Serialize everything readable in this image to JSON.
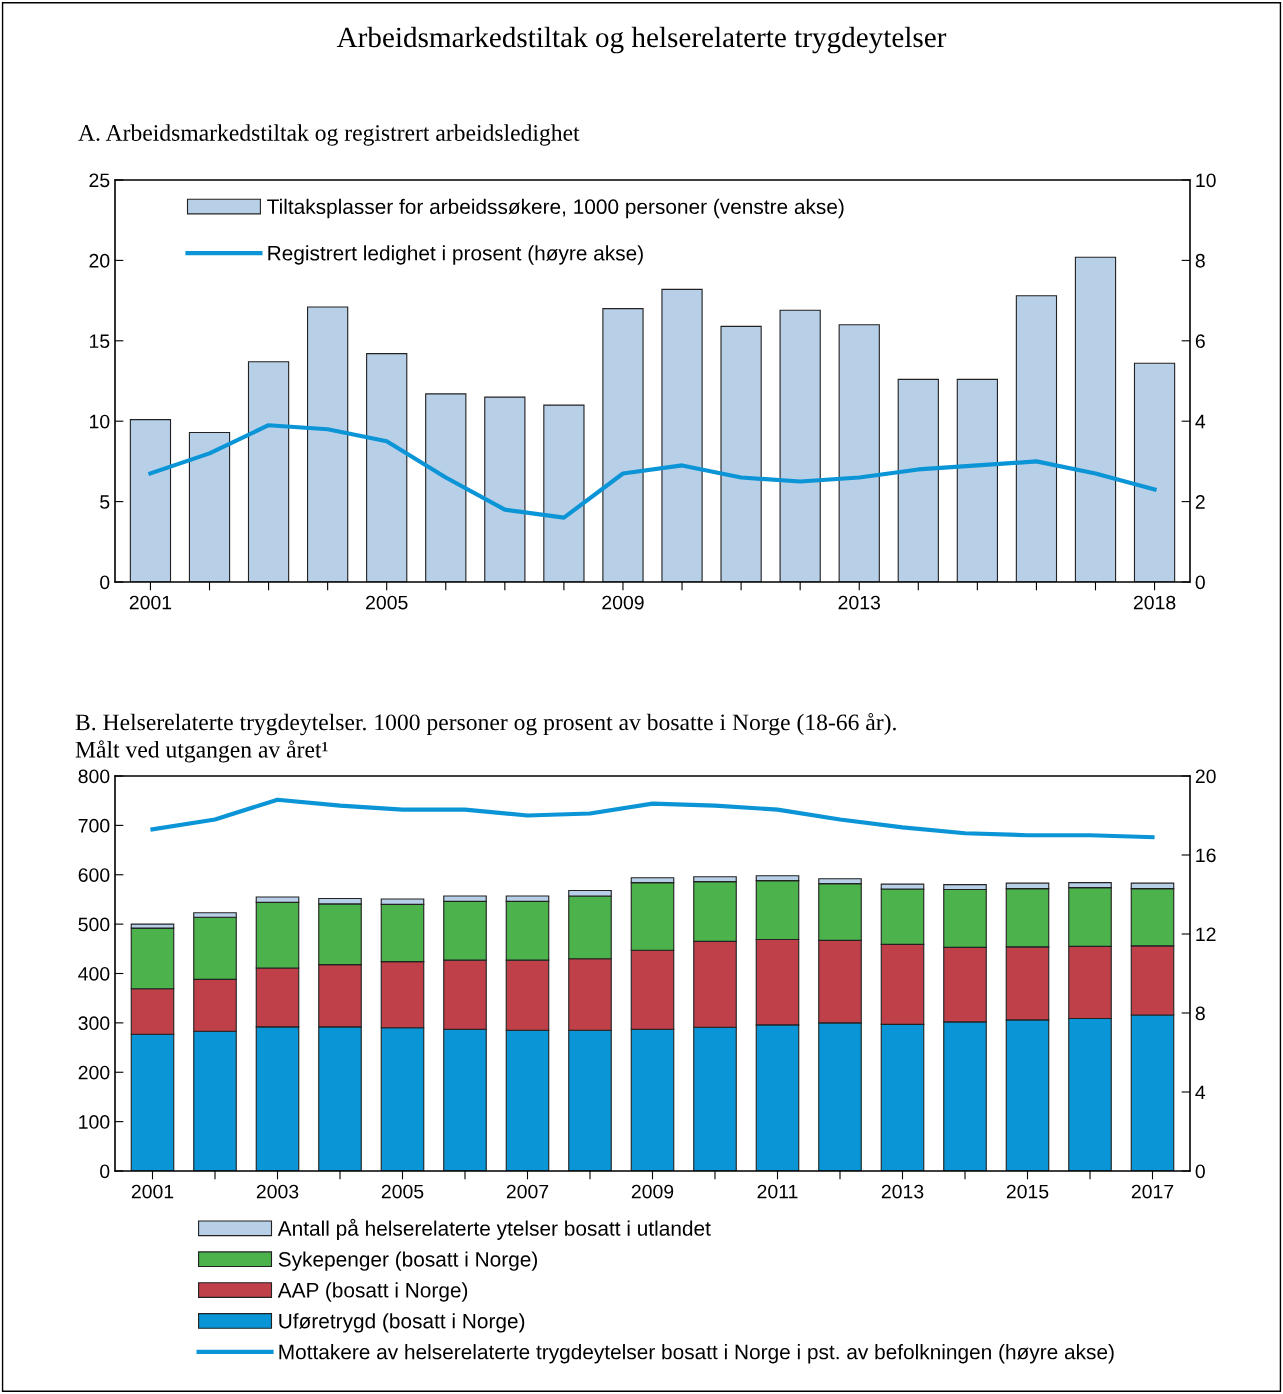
{
  "chart_data": [
    {
      "type": "bar",
      "title": "Arbeidsmarkedstiltak og helserelaterte trygdeytelser",
      "subtitle": "A. Arbeidsmarkedstiltak og registrert arbeidsledighet",
      "categories": [
        "2001",
        null,
        null,
        null,
        "2005",
        null,
        null,
        null,
        "2009",
        null,
        null,
        null,
        "2013",
        null,
        null,
        null,
        null,
        "2018"
      ],
      "series": [
        {
          "name": "Tiltaksplasser for arbeidssøkere, 1000 personer (venstre akse)",
          "color": "#b8cfe8",
          "values": [
            10.1,
            9.3,
            13.7,
            17.1,
            14.2,
            11.7,
            11.5,
            11.0,
            17.0,
            18.2,
            15.9,
            16.9,
            16.0,
            12.6,
            12.6,
            17.8,
            20.2,
            13.6
          ]
        },
        {
          "name": "Registrert ledighet i prosent (høyre akse)",
          "type": "line",
          "axis": "y2",
          "color": "#0b95d6",
          "values": [
            2.7,
            3.2,
            3.9,
            3.8,
            3.5,
            2.6,
            1.8,
            1.6,
            2.7,
            2.9,
            2.6,
            2.5,
            2.6,
            2.8,
            2.9,
            3.0,
            2.7,
            2.3
          ]
        }
      ],
      "ylim": [
        0,
        25
      ],
      "yticks": [
        0,
        5,
        10,
        15,
        20,
        25
      ],
      "y2lim": [
        0,
        10
      ],
      "y2ticks": [
        0,
        2,
        4,
        6,
        8,
        10
      ],
      "legend": "top left",
      "grid": false,
      "marker": "none",
      "line_style": "solid"
    },
    {
      "type": "bar",
      "subtitle": "B. Helserelaterte trygdeytelser. 1000 personer og prosent av bosatte i Norge (18-66 år).\nMålt ved utgangen av året¹",
      "categories": [
        "2001",
        null,
        "2003",
        null,
        "2005",
        null,
        "2007",
        null,
        "2009",
        null,
        "2011",
        null,
        "2013",
        null,
        "2015",
        null,
        "2017"
      ],
      "stacked": true,
      "series": [
        {
          "name": "Uføretrygd (bosatt i Norge)",
          "color": "#0a96d6",
          "values": [
            277,
            283,
            292,
            292,
            290,
            287,
            285,
            285,
            287,
            291,
            296,
            300,
            297,
            302,
            306,
            309,
            316
          ]
        },
        {
          "name": "AAP (bosatt i Norge)",
          "color": "#c0404a",
          "values": [
            92,
            105,
            119,
            126,
            134,
            140,
            142,
            145,
            160,
            174,
            173,
            167,
            162,
            151,
            148,
            146,
            140
          ]
        },
        {
          "name": "Sykepenger (bosatt i Norge)",
          "color": "#4cb24c",
          "values": [
            123,
            126,
            133,
            123,
            116,
            119,
            119,
            127,
            137,
            121,
            119,
            115,
            112,
            117,
            118,
            119,
            116
          ]
        },
        {
          "name": "Antall på helserelaterte ytelser bosatt i utlandet",
          "color": "#b8cfe8",
          "values": [
            8,
            9,
            11,
            11,
            11,
            11,
            11,
            11,
            10,
            10,
            10,
            10,
            10,
            10,
            11,
            10,
            11
          ]
        },
        {
          "name": "Mottakere av helserelaterte trygdeytelser bosatt i Norge i pst. av befolkningen (høyre akse)",
          "type": "line",
          "axis": "y2",
          "color": "#0b95d6",
          "values": [
            17.3,
            17.8,
            18.8,
            18.5,
            18.3,
            18.3,
            18.0,
            18.1,
            18.6,
            18.5,
            18.3,
            17.8,
            17.4,
            17.1,
            17.0,
            17.0,
            16.9
          ]
        }
      ],
      "ylim": [
        0,
        800
      ],
      "yticks": [
        0,
        100,
        200,
        300,
        400,
        500,
        600,
        700,
        800
      ],
      "y2lim": [
        0,
        20
      ],
      "y2ticks": [
        0,
        4,
        8,
        12,
        16,
        20
      ],
      "legend": "bottom",
      "grid": false,
      "marker": "none",
      "line_style": "solid"
    }
  ]
}
